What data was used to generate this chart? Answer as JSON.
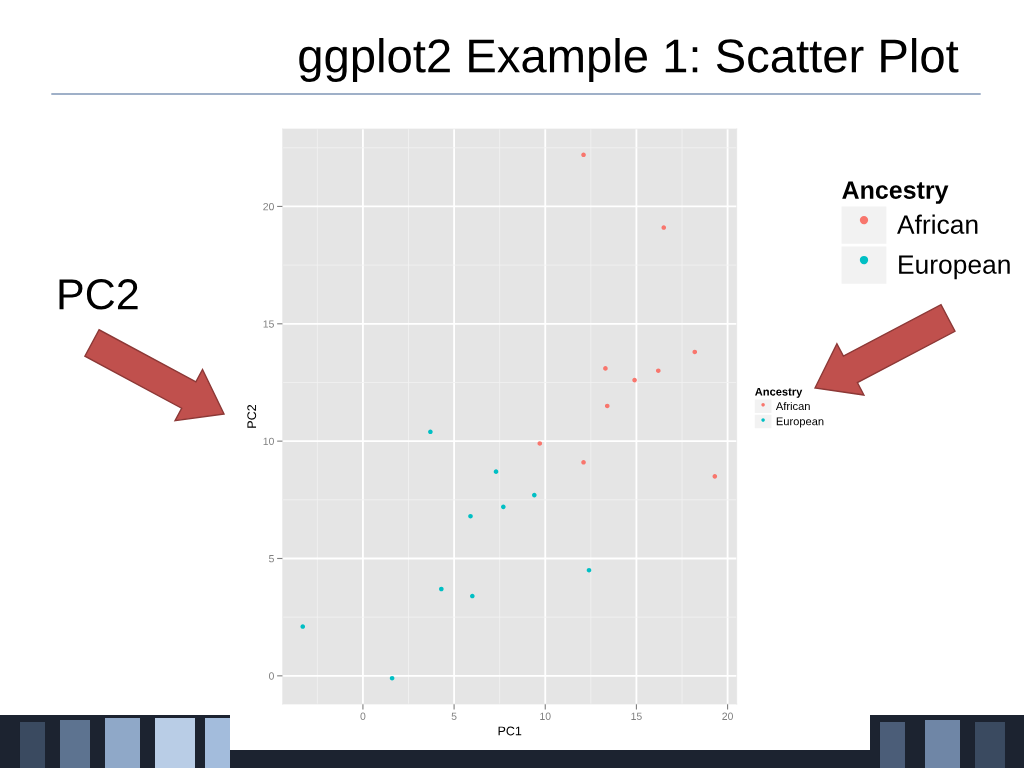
{
  "chart_data": {
    "type": "scatter",
    "title": "ggplot2 Example 1: Scatter Plot",
    "xlabel": "PC1",
    "ylabel": "PC2",
    "legend_title": "Ancestry",
    "annotations": [
      "PC2"
    ],
    "series": [
      {
        "name": "African",
        "color": "#f8766d",
        "x": [
          12.1,
          16.5,
          18.2,
          13.3,
          16.2,
          14.9,
          13.4,
          9.7,
          12.1,
          19.3
        ],
        "values": [
          22.2,
          19.1,
          13.8,
          13.1,
          13.0,
          12.6,
          11.5,
          9.9,
          9.1,
          8.5
        ]
      },
      {
        "name": "European",
        "color": "#00bfc4",
        "x": [
          3.7,
          7.3,
          9.4,
          7.7,
          5.9,
          12.4,
          4.3,
          6.0,
          -3.3,
          1.6
        ],
        "values": [
          10.4,
          8.7,
          7.7,
          7.2,
          6.8,
          4.5,
          3.7,
          3.4,
          2.1,
          -0.1
        ]
      }
    ],
    "xlim": [
      -4.4,
      20.5
    ],
    "ylim": [
      -1.2,
      23.3
    ],
    "xticks": [
      0,
      5,
      10,
      15,
      20
    ],
    "yticks": [
      0,
      5,
      10,
      15,
      20
    ],
    "grid": true,
    "legend": "right",
    "marker": "circle"
  }
}
